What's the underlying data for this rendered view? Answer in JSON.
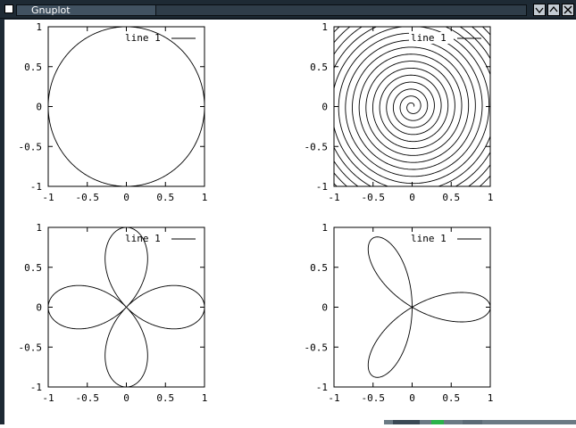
{
  "window": {
    "title": "Gnuplot",
    "controls": [
      "minimize-icon",
      "maximize-icon",
      "close-icon"
    ]
  },
  "chart_data": [
    {
      "type": "line",
      "curve": "parametric circle: x=cos(t), y=sin(t)",
      "series": [
        {
          "name": "line 1"
        }
      ],
      "xlim": [
        -1,
        1
      ],
      "ylim": [
        -1,
        1
      ],
      "xticks": [
        "-1",
        "-0.5",
        "0",
        "0.5",
        "1"
      ],
      "yticks": [
        "1",
        "0.5",
        "0",
        "-0.5",
        "-1"
      ],
      "legend": "top-right",
      "grid": false
    },
    {
      "type": "line",
      "curve": "archimedean spiral: r proportional to t",
      "series": [
        {
          "name": "line 1"
        }
      ],
      "xlim": [
        -1,
        1
      ],
      "ylim": [
        -1,
        1
      ],
      "xticks": [
        "-1",
        "-0.5",
        "0",
        "0.5",
        "1"
      ],
      "yticks": [
        "1",
        "0.5",
        "0",
        "-0.5",
        "-1"
      ],
      "legend": "top-right",
      "grid": false
    },
    {
      "type": "line",
      "curve": "four-petal rose: r = cos(2t)",
      "series": [
        {
          "name": "line 1"
        }
      ],
      "xlim": [
        -1,
        1
      ],
      "ylim": [
        -1,
        1
      ],
      "xticks": [
        "-1",
        "-0.5",
        "0",
        "0.5",
        "1"
      ],
      "yticks": [
        "1",
        "0.5",
        "0",
        "-0.5",
        "-1"
      ],
      "legend": "top-right",
      "grid": false
    },
    {
      "type": "line",
      "curve": "three-petal rose: r = cos(3t)",
      "series": [
        {
          "name": "line 1"
        }
      ],
      "xlim": [
        -1,
        1
      ],
      "ylim": [
        -1,
        1
      ],
      "xticks": [
        "-1",
        "-0.5",
        "0",
        "0.5",
        "1"
      ],
      "yticks": [
        "1",
        "0.5",
        "0",
        "-0.5",
        "-1"
      ],
      "legend": "top-right",
      "grid": false
    }
  ]
}
